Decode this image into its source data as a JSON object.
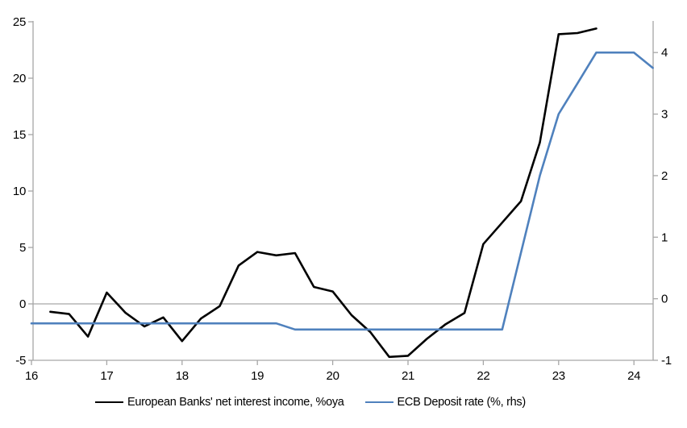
{
  "chart": {
    "background": "#ffffff",
    "axis_color": "#a6a6a6",
    "text_color": "#000000",
    "legend": {
      "items": [
        {
          "label": "European Banks' net interest income, %oya",
          "color": "#000000"
        },
        {
          "label": "ECB Deposit rate (%, rhs)",
          "color": "#4f81bd"
        }
      ]
    }
  },
  "chart_data": {
    "type": "line",
    "title": "",
    "xlabel": "",
    "ylabel_left": "",
    "ylabel_right": "",
    "grid": "zero-line-only",
    "legend_position": "bottom",
    "x_axis": {
      "min": 16,
      "max": 24.3,
      "ticks": [
        16,
        17,
        18,
        19,
        20,
        21,
        22,
        23,
        24
      ]
    },
    "left_axis": {
      "min": -5,
      "max": 25,
      "ticks": [
        25,
        20,
        15,
        10,
        5,
        0,
        -5
      ]
    },
    "right_axis": {
      "min": -1,
      "max": 4.5,
      "ticks": [
        4,
        3,
        2,
        1,
        0,
        -1
      ]
    },
    "series": [
      {
        "name": "European Banks' net interest income, %oya",
        "axis": "left",
        "color": "#000000",
        "x": [
          16.25,
          16.5,
          16.75,
          17,
          17.25,
          17.5,
          17.75,
          18,
          18.25,
          18.5,
          18.75,
          19,
          19.25,
          19.5,
          19.75,
          20,
          20.25,
          20.5,
          20.75,
          21,
          21.25,
          21.5,
          21.75,
          22,
          22.25,
          22.5,
          22.75,
          23,
          23.25,
          23.5
        ],
        "values": [
          -0.7,
          -0.9,
          -2.9,
          1.0,
          -0.8,
          -2.0,
          -1.2,
          -3.3,
          -1.3,
          -0.2,
          3.4,
          4.6,
          4.3,
          4.5,
          1.5,
          1.1,
          -1.0,
          -2.5,
          -4.7,
          -4.6,
          -3.1,
          -1.8,
          -0.8,
          5.3,
          7.2,
          9.1,
          14.3,
          23.9,
          24.0,
          24.4
        ]
      },
      {
        "name": "ECB Deposit rate (%, rhs)",
        "axis": "right",
        "color": "#4f81bd",
        "x": [
          16,
          16.25,
          16.5,
          16.75,
          17,
          17.25,
          17.5,
          17.75,
          18,
          18.25,
          18.5,
          18.75,
          19,
          19.25,
          19.5,
          19.75,
          20,
          20.25,
          20.5,
          20.75,
          21,
          21.25,
          21.5,
          21.75,
          22,
          22.25,
          22.5,
          22.75,
          23,
          23.25,
          23.5,
          23.75,
          24,
          24.25
        ],
        "values": [
          -0.4,
          -0.4,
          -0.4,
          -0.4,
          -0.4,
          -0.4,
          -0.4,
          -0.4,
          -0.4,
          -0.4,
          -0.4,
          -0.4,
          -0.4,
          -0.4,
          -0.5,
          -0.5,
          -0.5,
          -0.5,
          -0.5,
          -0.5,
          -0.5,
          -0.5,
          -0.5,
          -0.5,
          -0.5,
          -0.5,
          0.75,
          2.0,
          3.0,
          3.5,
          4.0,
          4.0,
          4.0,
          3.75
        ]
      }
    ]
  }
}
